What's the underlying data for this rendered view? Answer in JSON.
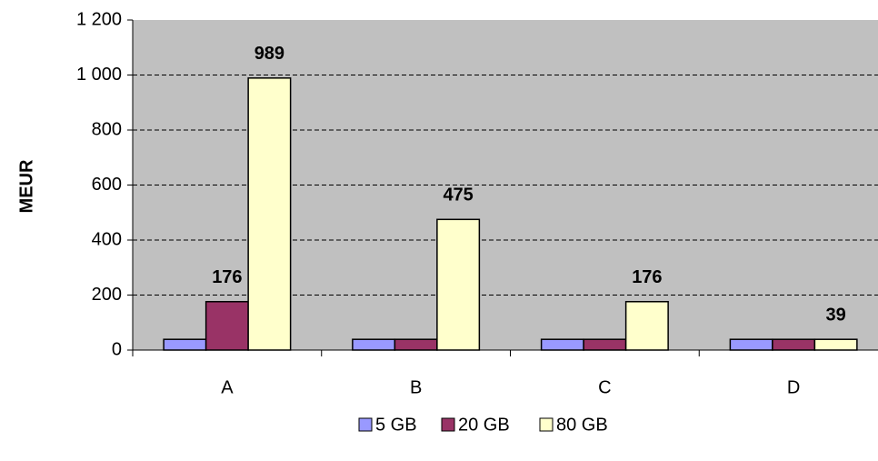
{
  "chart_data": {
    "type": "bar",
    "y_label": "MEUR",
    "categories": [
      "A",
      "B",
      "C",
      "D"
    ],
    "series": [
      {
        "name": "5 GB",
        "color": "#9999ff",
        "values": [
          39,
          39,
          39,
          39
        ]
      },
      {
        "name": "20 GB",
        "color": "#993366",
        "values": [
          176,
          39,
          39,
          39
        ],
        "value_labels": [
          176,
          null,
          null,
          null
        ]
      },
      {
        "name": "80 GB",
        "color": "#ffffcc",
        "values": [
          989,
          475,
          176,
          39
        ],
        "value_labels": [
          989,
          475,
          176,
          39
        ]
      }
    ],
    "ylim": [
      0,
      1200
    ],
    "yticks": [
      0,
      200,
      400,
      600,
      800,
      {
        "value": 1000,
        "label": "1 000"
      },
      {
        "value": 1200,
        "label": "1 200"
      }
    ],
    "grid": true,
    "legend": "bottom",
    "plot_background": "#c0c0c0"
  }
}
